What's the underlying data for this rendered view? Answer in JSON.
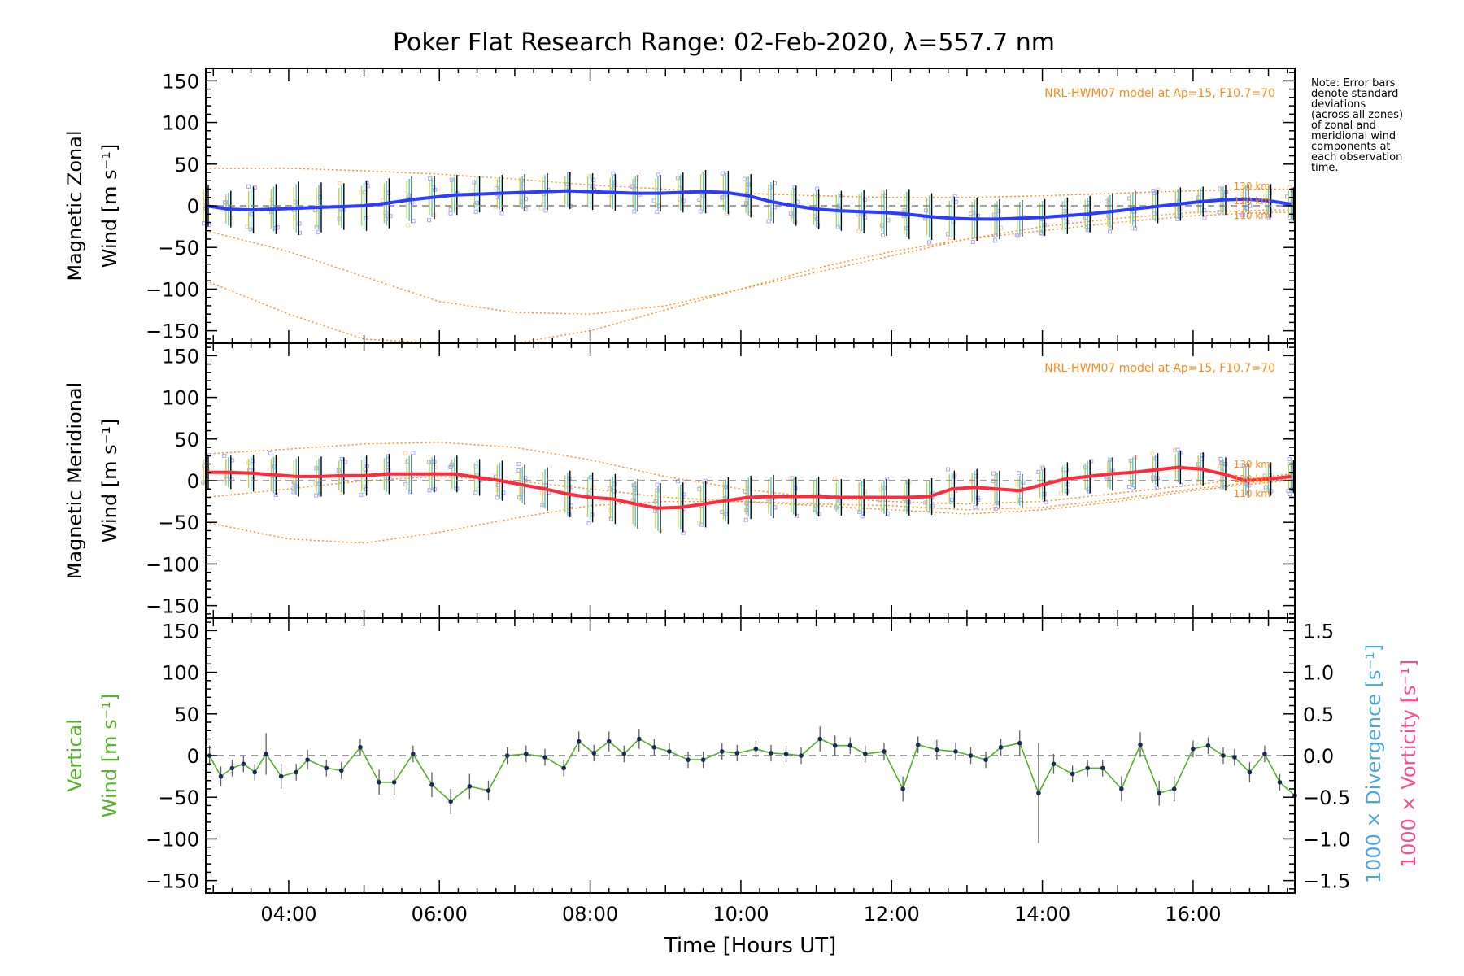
{
  "title": "Poker Flat Research Range: 02-Feb-2020, λ=557.7 nm",
  "note": [
    "Note: Error bars",
    "denote standard",
    "deviations",
    "(across all zones)",
    "of zonal and",
    "meridional wind",
    "components at",
    "each observation",
    "time."
  ],
  "colors": {
    "zonal": "#2a3cff",
    "meridional": "#ff2a3c",
    "vertical": "#55b02a",
    "model": "#ff8a1a",
    "divergence": "#4aa8d8",
    "vorticity": "#ff4a8a",
    "scatter": "#a8a8ff"
  },
  "chart_data": [
    {
      "type": "line",
      "panel": "zonal",
      "ylabel_line1": "Magnetic Zonal",
      "ylabel_line2": "Wind [m s⁻¹]",
      "model_label": "NRL-HWM07 model at Ap=15, F10.7=70",
      "model_heights": [
        "130 km",
        "120 km",
        "110 km"
      ],
      "xlim": [
        2.9,
        17.35
      ],
      "ylim": [
        -165,
        165
      ],
      "yticks": [
        150,
        100,
        50,
        0,
        -50,
        -100,
        -150
      ],
      "series": [
        {
          "x": [
            2.9,
            3.2,
            3.5,
            3.8,
            4.1,
            4.4,
            4.7,
            5.0,
            5.3,
            5.6,
            5.9,
            6.2,
            6.5,
            6.8,
            7.1,
            7.4,
            7.7,
            8.0,
            8.3,
            8.6,
            8.9,
            9.2,
            9.5,
            9.8,
            10.1,
            10.4,
            10.7,
            11.0,
            11.3,
            11.6,
            11.9,
            12.2,
            12.5,
            12.8,
            13.1,
            13.4,
            13.7,
            14.0,
            14.3,
            14.6,
            14.9,
            15.2,
            15.5,
            15.8,
            16.1,
            16.4,
            16.7,
            17.0,
            17.3
          ],
          "y": [
            0,
            -4,
            -5,
            -4,
            -3,
            -2,
            -1,
            0,
            3,
            7,
            10,
            13,
            14,
            15,
            16,
            17,
            18,
            17,
            16,
            15,
            15,
            16,
            17,
            16,
            12,
            5,
            0,
            -4,
            -6,
            -7,
            -8,
            -10,
            -13,
            -15,
            -16,
            -16,
            -15,
            -14,
            -12,
            -10,
            -7,
            -4,
            -1,
            2,
            5,
            7,
            8,
            6,
            2
          ],
          "err": [
            25,
            22,
            28,
            30,
            32,
            30,
            28,
            30,
            30,
            28,
            26,
            24,
            22,
            22,
            22,
            22,
            22,
            22,
            22,
            22,
            22,
            24,
            26,
            26,
            26,
            26,
            24,
            24,
            24,
            26,
            28,
            30,
            28,
            26,
            26,
            24,
            22,
            22,
            22,
            22,
            22,
            22,
            20,
            20,
            18,
            18,
            18,
            20,
            20
          ]
        }
      ],
      "model": [
        {
          "x": [
            2.9,
            4.0,
            5.0,
            6.0,
            7.0,
            8.0,
            9.0,
            10.0,
            11.0,
            12.0,
            13.0,
            14.0,
            15.0,
            16.0,
            17.0,
            17.3
          ],
          "y": [
            45,
            45,
            42,
            38,
            32,
            25,
            20,
            15,
            12,
            10,
            10,
            12,
            15,
            18,
            20,
            20
          ]
        },
        {
          "x": [
            2.9,
            4.0,
            5.0,
            6.0,
            7.0,
            8.0,
            9.0,
            10.0,
            11.0,
            12.0,
            13.0,
            14.0,
            15.0,
            16.0,
            17.0,
            17.3
          ],
          "y": [
            -30,
            -55,
            -85,
            -115,
            -128,
            -130,
            -120,
            -100,
            -80,
            -60,
            -40,
            -25,
            -15,
            -8,
            -5,
            -5
          ]
        },
        {
          "x": [
            2.9,
            4.0,
            5.0,
            6.0,
            7.0,
            8.0,
            9.0,
            10.0,
            11.0,
            12.0,
            13.0,
            14.0,
            15.0,
            16.0,
            17.0,
            17.3
          ],
          "y": [
            -90,
            -130,
            -160,
            -170,
            -165,
            -150,
            -125,
            -100,
            -75,
            -55,
            -40,
            -30,
            -20,
            -12,
            -8,
            -8
          ]
        }
      ]
    },
    {
      "type": "line",
      "panel": "meridional",
      "ylabel_line1": "Magnetic Meridional",
      "ylabel_line2": "Wind [m s⁻¹]",
      "model_label": "NRL-HWM07 model at Ap=15, F10.7=70",
      "model_heights": [
        "130 km",
        "120 km",
        "110 km"
      ],
      "xlim": [
        2.9,
        17.35
      ],
      "ylim": [
        -165,
        165
      ],
      "yticks": [
        150,
        100,
        50,
        0,
        -50,
        -100,
        -150
      ],
      "series": [
        {
          "x": [
            2.9,
            3.2,
            3.5,
            3.8,
            4.1,
            4.4,
            4.7,
            5.0,
            5.3,
            5.6,
            5.9,
            6.2,
            6.5,
            6.8,
            7.1,
            7.4,
            7.7,
            8.0,
            8.3,
            8.6,
            8.9,
            9.2,
            9.5,
            9.8,
            10.1,
            10.4,
            10.7,
            11.0,
            11.3,
            11.6,
            11.9,
            12.2,
            12.5,
            12.8,
            13.1,
            13.4,
            13.7,
            14.0,
            14.3,
            14.6,
            14.9,
            15.2,
            15.5,
            15.8,
            16.1,
            16.4,
            16.7,
            17.0,
            17.3
          ],
          "y": [
            10,
            10,
            9,
            7,
            5,
            5,
            6,
            6,
            8,
            8,
            8,
            8,
            4,
            0,
            -5,
            -10,
            -16,
            -20,
            -22,
            -28,
            -33,
            -32,
            -28,
            -24,
            -20,
            -19,
            -19,
            -19,
            -20,
            -20,
            -20,
            -20,
            -19,
            -10,
            -8,
            -10,
            -12,
            -5,
            2,
            5,
            8,
            10,
            13,
            16,
            14,
            8,
            0,
            2,
            5
          ],
          "err": [
            20,
            20,
            22,
            24,
            24,
            24,
            22,
            24,
            24,
            24,
            22,
            22,
            22,
            24,
            24,
            26,
            28,
            30,
            30,
            30,
            30,
            30,
            28,
            28,
            26,
            26,
            24,
            24,
            22,
            22,
            22,
            22,
            22,
            22,
            22,
            22,
            20,
            20,
            20,
            20,
            20,
            20,
            20,
            20,
            20,
            20,
            20,
            20,
            20
          ]
        }
      ],
      "model": [
        {
          "x": [
            2.9,
            4.0,
            5.0,
            6.0,
            7.0,
            8.0,
            9.0,
            10.0,
            11.0,
            12.0,
            13.0,
            14.0,
            15.0,
            16.0,
            17.0,
            17.3
          ],
          "y": [
            32,
            38,
            44,
            46,
            40,
            25,
            5,
            -10,
            -20,
            -25,
            -28,
            -25,
            -15,
            -5,
            5,
            8
          ]
        },
        {
          "x": [
            2.9,
            4.0,
            5.0,
            6.0,
            7.0,
            8.0,
            9.0,
            10.0,
            11.0,
            12.0,
            13.0,
            14.0,
            15.0,
            16.0,
            17.0,
            17.3
          ],
          "y": [
            -50,
            -70,
            -75,
            -62,
            -45,
            -30,
            -25,
            -25,
            -28,
            -30,
            -35,
            -32,
            -22,
            -10,
            0,
            2
          ]
        },
        {
          "x": [
            2.9,
            4.0,
            5.0,
            6.0,
            7.0,
            8.0,
            9.0,
            10.0,
            11.0,
            12.0,
            13.0,
            14.0,
            15.0,
            16.0,
            17.0,
            17.3
          ],
          "y": [
            -20,
            -10,
            0,
            5,
            0,
            -10,
            -20,
            -25,
            -30,
            -35,
            -40,
            -35,
            -25,
            -12,
            -2,
            0
          ]
        }
      ]
    },
    {
      "type": "line",
      "panel": "vertical",
      "ylabel_line1": "Vertical",
      "ylabel_line2": "Wind [m s⁻¹]",
      "right_axis_label_1": "1000 × Divergence [s⁻¹]",
      "right_axis_label_2": "1000 × Vorticity [s⁻¹]",
      "xlabel": "Time [Hours UT]",
      "xticks": [
        "04:00",
        "06:00",
        "08:00",
        "10:00",
        "12:00",
        "14:00",
        "16:00"
      ],
      "xtick_values": [
        4,
        6,
        8,
        10,
        12,
        14,
        16
      ],
      "xlim": [
        2.9,
        17.35
      ],
      "ylim": [
        -165,
        165
      ],
      "yticks": [
        150,
        100,
        50,
        0,
        -50,
        -100,
        -150
      ],
      "y2lim": [
        -1.65,
        1.65
      ],
      "y2ticks": [
        "1.5",
        "1.0",
        "0.5",
        "0.0",
        "-0.5",
        "-1.0",
        "-1.5"
      ],
      "y2tick_values": [
        1.5,
        1.0,
        0.5,
        0.0,
        -0.5,
        -1.0,
        -1.5
      ],
      "series": [
        {
          "x": [
            2.95,
            3.1,
            3.25,
            3.4,
            3.55,
            3.7,
            3.9,
            4.1,
            4.25,
            4.5,
            4.7,
            4.95,
            5.2,
            5.4,
            5.65,
            5.9,
            6.15,
            6.4,
            6.65,
            6.9,
            7.15,
            7.4,
            7.65,
            7.85,
            8.05,
            8.25,
            8.45,
            8.65,
            8.85,
            9.05,
            9.3,
            9.5,
            9.75,
            9.95,
            10.2,
            10.4,
            10.6,
            10.8,
            11.05,
            11.25,
            11.45,
            11.65,
            11.9,
            12.15,
            12.35,
            12.6,
            12.85,
            13.05,
            13.25,
            13.45,
            13.7,
            13.95,
            14.15,
            14.4,
            14.6,
            14.8,
            15.05,
            15.3,
            15.55,
            15.75,
            16.0,
            16.2,
            16.4,
            16.55,
            16.75,
            16.95,
            17.15,
            17.35
          ],
          "y": [
            0,
            -25,
            -15,
            -10,
            -20,
            2,
            -25,
            -20,
            -5,
            -15,
            -18,
            10,
            -32,
            -32,
            2,
            -35,
            -55,
            -37,
            -42,
            0,
            2,
            -2,
            -15,
            17,
            3,
            17,
            2,
            20,
            10,
            5,
            -5,
            -5,
            5,
            3,
            8,
            3,
            2,
            0,
            20,
            12,
            12,
            2,
            5,
            -40,
            13,
            7,
            5,
            0,
            -5,
            10,
            15,
            -45,
            -10,
            -22,
            -15,
            -15,
            -40,
            13,
            -45,
            -40,
            8,
            12,
            0,
            -2,
            -20,
            2,
            -32,
            -48
          ],
          "err": [
            12,
            12,
            10,
            10,
            10,
            25,
            15,
            10,
            12,
            10,
            10,
            10,
            15,
            15,
            10,
            15,
            15,
            15,
            12,
            10,
            10,
            10,
            10,
            12,
            10,
            12,
            10,
            12,
            10,
            10,
            10,
            10,
            10,
            10,
            10,
            10,
            10,
            10,
            15,
            12,
            10,
            10,
            10,
            15,
            10,
            12,
            10,
            10,
            10,
            10,
            15,
            60,
            12,
            10,
            10,
            10,
            15,
            15,
            15,
            15,
            10,
            10,
            10,
            10,
            12,
            10,
            10,
            10
          ]
        }
      ]
    }
  ]
}
